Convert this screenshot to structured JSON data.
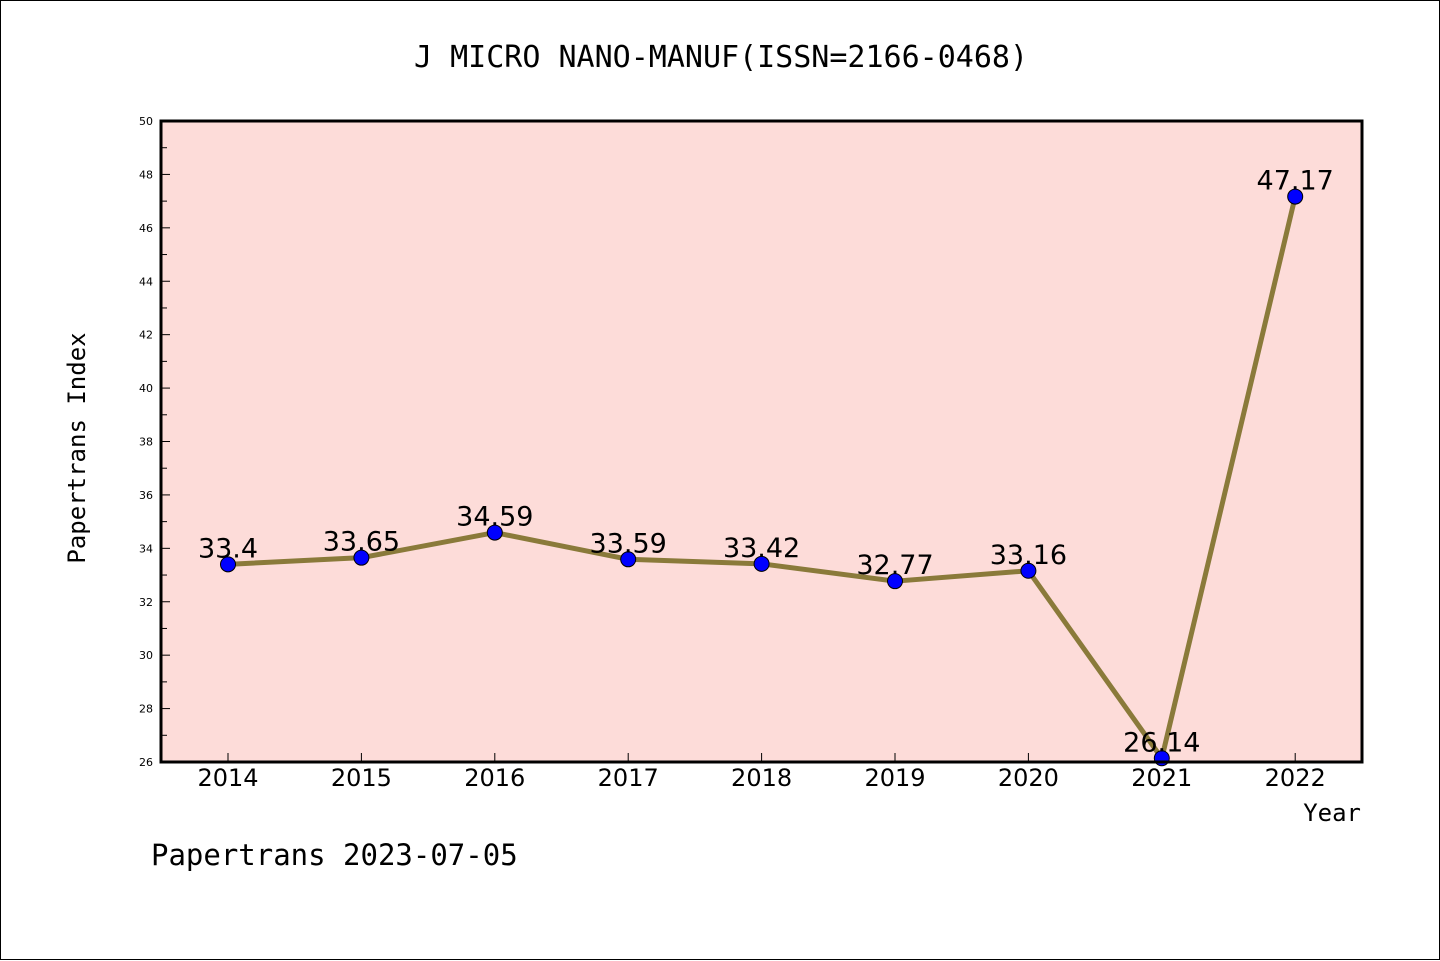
{
  "chart_data": {
    "type": "line",
    "title": "J MICRO NANO-MANUF(ISSN=2166-0468)",
    "xlabel": "Year",
    "ylabel": "Papertrans Index",
    "categories": [
      "2014",
      "2015",
      "2016",
      "2017",
      "2018",
      "2019",
      "2020",
      "2021",
      "2022"
    ],
    "series": [
      {
        "values": [
          33.4,
          33.65,
          34.59,
          33.59,
          33.42,
          32.77,
          33.16,
          26.14,
          47.17
        ],
        "data_labels": [
          "33.4",
          "33.65",
          "34.59",
          "33.59",
          "33.42",
          "32.77",
          "33.16",
          "26.14",
          "47.17"
        ]
      }
    ],
    "ylim": [
      26,
      50
    ],
    "y_ticks": [
      "26",
      "28",
      "30",
      "32",
      "34",
      "36",
      "38",
      "40",
      "42",
      "44",
      "46",
      "48",
      "50"
    ],
    "grid": false,
    "legend": "none",
    "colors": {
      "line": "#8a7a3a",
      "marker": "#0000ff",
      "plot_background": "#fddcd9",
      "frame": "#000000"
    }
  },
  "footer": "Papertrans 2023-07-05"
}
